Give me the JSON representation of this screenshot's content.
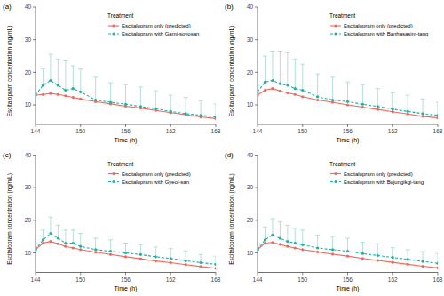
{
  "chart_data": [
    {
      "type": "line",
      "title": "(a)",
      "x_label": "Time (h)",
      "y_label": "Escitalopram concentration (ng/mL)",
      "legend_title": "Treatment",
      "legend": "top-right",
      "x": [
        144,
        145,
        146,
        147,
        148,
        149,
        150,
        152,
        154,
        156,
        158,
        160,
        162,
        164,
        166,
        168
      ],
      "xlim": [
        144,
        168
      ],
      "xticks": [
        144,
        150,
        156,
        162,
        168
      ],
      "ylim": [
        4,
        40
      ],
      "yticks": [
        10,
        20,
        30,
        40
      ],
      "series": [
        {
          "name": "Escitalopram only (predicted)",
          "color": "#f0695e",
          "line_style": "solid",
          "marker": "circle",
          "values": [
            13,
            13.2,
            13.5,
            13.2,
            12.8,
            12.3,
            11.8,
            11,
            10.3,
            9.6,
            9,
            8.3,
            7.6,
            7,
            6.3,
            5.8
          ]
        },
        {
          "name": "Escitalopram with Gami-soyosan",
          "color": "#1fb3a8",
          "line_style": "dashed",
          "marker": "circle",
          "values": [
            13,
            16,
            17.5,
            16,
            14.5,
            15,
            14,
            11.5,
            10.8,
            10.2,
            9.5,
            8.8,
            8,
            7.3,
            6.8,
            6.3
          ],
          "errors": [
            0.5,
            5,
            8,
            8,
            9,
            7,
            7,
            7,
            6,
            6,
            6,
            5.5,
            5,
            5,
            4.5,
            4
          ]
        }
      ]
    },
    {
      "type": "line",
      "title": "(b)",
      "x_label": "Time (h)",
      "y_label": "Escitalopram concentration (ng/mL)",
      "legend_title": "Treatment",
      "legend": "top-right",
      "x": [
        144,
        145,
        146,
        147,
        148,
        149,
        150,
        152,
        154,
        156,
        158,
        160,
        162,
        164,
        166,
        168
      ],
      "xlim": [
        144,
        168
      ],
      "xticks": [
        144,
        150,
        156,
        162,
        168
      ],
      "ylim": [
        4,
        40
      ],
      "yticks": [
        10,
        20,
        30,
        40
      ],
      "series": [
        {
          "name": "Escitalopram only (predicted)",
          "color": "#f0695e",
          "line_style": "solid",
          "marker": "circle",
          "values": [
            13,
            14.5,
            15,
            14.3,
            13.7,
            13.2,
            12.5,
            11.5,
            10.8,
            10,
            9.3,
            8.6,
            7.9,
            7.2,
            6.5,
            6
          ]
        },
        {
          "name": "Escitalopram with Banhasasim-tang",
          "color": "#1fb3a8",
          "line_style": "dashed",
          "marker": "circle",
          "values": [
            14,
            17,
            17.5,
            16.5,
            16,
            15,
            14.5,
            12.5,
            11.5,
            11,
            10.2,
            9.5,
            8.7,
            8,
            7.3,
            6.8
          ],
          "errors": [
            2,
            8,
            9,
            10,
            10,
            9,
            8,
            7,
            7,
            6,
            6,
            5.5,
            5,
            5,
            4.5,
            4
          ]
        }
      ]
    },
    {
      "type": "line",
      "title": "(c)",
      "x_label": "Time (h)",
      "y_label": "Escitalopram concentration (ng/mL)",
      "legend_title": "Treatment",
      "legend": "top-right",
      "x": [
        144,
        145,
        146,
        147,
        148,
        149,
        150,
        152,
        154,
        156,
        158,
        160,
        162,
        164,
        166,
        168
      ],
      "xlim": [
        144,
        168
      ],
      "xticks": [
        144,
        150,
        156,
        162,
        168
      ],
      "ylim": [
        4,
        40
      ],
      "yticks": [
        10,
        20,
        30,
        40
      ],
      "series": [
        {
          "name": "Escitalopram only (predicted)",
          "color": "#f0695e",
          "line_style": "solid",
          "marker": "circle",
          "values": [
            11,
            13,
            13.5,
            12.8,
            12,
            11.5,
            11,
            10.2,
            9.5,
            8.8,
            8.2,
            7.5,
            7,
            6.4,
            5.8,
            5.3
          ]
        },
        {
          "name": "Escitalopram with Gyeol-san",
          "color": "#1fb3a8",
          "line_style": "dashed",
          "marker": "circle",
          "values": [
            11,
            14,
            16,
            14.5,
            13,
            13,
            12,
            11,
            10.5,
            10,
            9.5,
            8.8,
            8.3,
            7.6,
            7,
            6.5
          ],
          "errors": [
            1,
            3,
            5,
            4,
            4,
            4,
            4,
            3.5,
            3.5,
            3,
            3,
            3,
            3,
            3,
            2.5,
            2.5
          ]
        }
      ]
    },
    {
      "type": "line",
      "title": "(d)",
      "x_label": "Time (h)",
      "y_label": "Escitalopram concentration (ng/mL)",
      "legend_title": "Treatment",
      "legend": "top-right",
      "x": [
        144,
        145,
        146,
        147,
        148,
        149,
        150,
        152,
        154,
        156,
        158,
        160,
        162,
        164,
        166,
        168
      ],
      "xlim": [
        144,
        168
      ],
      "xticks": [
        144,
        150,
        156,
        162,
        168
      ],
      "ylim": [
        4,
        40
      ],
      "yticks": [
        10,
        20,
        30,
        40
      ],
      "series": [
        {
          "name": "Escitalopram only (predicted)",
          "color": "#f0695e",
          "line_style": "solid",
          "marker": "circle",
          "values": [
            11,
            13,
            13.2,
            12.6,
            12,
            11.5,
            11,
            10.3,
            9.6,
            9,
            8.3,
            7.7,
            7.1,
            6.5,
            5.9,
            5.4
          ]
        },
        {
          "name": "Escitalopram with Bojungikgi-tang",
          "color": "#1fb3a8",
          "line_style": "dashed",
          "marker": "circle",
          "values": [
            11,
            14,
            15.5,
            14.5,
            13.5,
            13,
            12.5,
            11.5,
            11,
            10.5,
            9.8,
            9.2,
            8.6,
            8,
            7.4,
            6.8
          ],
          "errors": [
            1,
            4,
            5,
            5,
            5,
            4.5,
            4.5,
            4,
            4,
            4,
            3.5,
            3.5,
            3,
            3,
            3,
            3
          ]
        }
      ]
    }
  ]
}
